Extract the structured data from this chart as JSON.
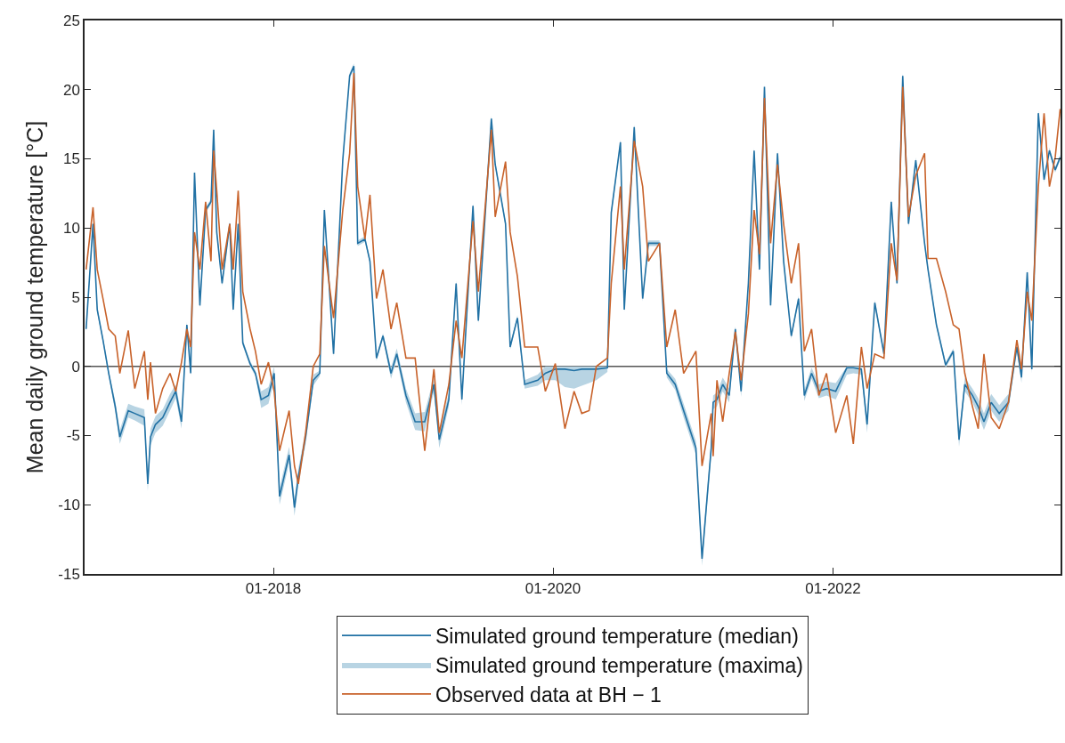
{
  "chart_data": {
    "type": "line",
    "ylabel": "Mean daily ground temperature [°C]",
    "x": [
      "2016-08-30",
      "2016-09-17",
      "2016-09-28",
      "2016-10-13",
      "2016-10-28",
      "2016-11-14",
      "2016-11-26",
      "2016-12-18",
      "2017-01-04",
      "2017-01-29",
      "2017-02-07",
      "2017-02-14",
      "2017-02-27",
      "2017-03-18",
      "2017-04-06",
      "2017-04-21",
      "2017-05-06",
      "2017-05-20",
      "2017-05-30",
      "2017-06-09",
      "2017-06-23",
      "2017-07-08",
      "2017-07-22",
      "2017-07-29",
      "2017-08-06",
      "2017-08-20",
      "2017-09-09",
      "2017-09-18",
      "2017-10-01",
      "2017-10-13",
      "2017-11-01",
      "2017-11-15",
      "2017-11-30",
      "2017-12-19",
      "2018-01-03",
      "2018-01-17",
      "2018-02-11",
      "2018-02-25",
      "2018-03-07",
      "2018-03-26",
      "2018-04-15",
      "2018-05-02",
      "2018-05-14",
      "2018-06-07",
      "2018-07-01",
      "2018-07-19",
      "2018-07-30",
      "2018-08-09",
      "2018-08-28",
      "2018-09-10",
      "2018-09-27",
      "2018-10-14",
      "2018-11-04",
      "2018-11-19",
      "2018-12-13",
      "2019-01-06",
      "2019-01-31",
      "2019-02-24",
      "2019-03-10",
      "2019-04-04",
      "2019-04-23",
      "2019-05-08",
      "2019-06-06",
      "2019-06-20",
      "2019-07-24",
      "2019-08-03",
      "2019-08-30",
      "2019-09-11",
      "2019-09-30",
      "2019-10-19",
      "2019-11-22",
      "2019-12-12",
      "2020-01-07",
      "2020-02-01",
      "2020-02-25",
      "2020-03-16",
      "2020-04-04",
      "2020-04-23",
      "2020-05-22",
      "2020-06-01",
      "2020-06-25",
      "2020-07-05",
      "2020-07-31",
      "2020-08-22",
      "2020-09-06",
      "2020-10-05",
      "2020-10-24",
      "2020-11-15",
      "2020-12-07",
      "2021-01-08",
      "2021-01-24",
      "2021-02-17",
      "2021-02-22",
      "2021-03-04",
      "2021-03-19",
      "2021-04-05",
      "2021-04-21",
      "2021-05-06",
      "2021-05-25",
      "2021-06-09",
      "2021-06-23",
      "2021-07-06",
      "2021-07-22",
      "2021-08-09",
      "2021-08-25",
      "2021-09-14",
      "2021-10-03",
      "2021-10-18",
      "2021-11-06",
      "2021-11-25",
      "2021-12-15",
      "2022-01-08",
      "2022-02-06",
      "2022-02-23",
      "2022-03-16",
      "2022-03-31",
      "2022-04-20",
      "2022-05-14",
      "2022-06-02",
      "2022-06-17",
      "2022-07-02",
      "2022-07-17",
      "2022-08-05",
      "2022-08-28",
      "2022-09-06",
      "2022-09-28",
      "2022-10-22",
      "2022-11-11",
      "2022-11-26",
      "2022-12-11",
      "2022-12-31",
      "2023-01-15",
      "2023-01-30",
      "2023-02-18",
      "2023-03-11",
      "2023-04-04",
      "2023-04-26",
      "2023-05-08",
      "2023-05-23",
      "2023-06-04",
      "2023-06-21",
      "2023-07-06",
      "2023-07-20",
      "2023-08-04",
      "2023-08-17"
    ],
    "series": [
      {
        "name": "Simulated ground temperature (median)",
        "color": "#2171a4",
        "values": [
          2.7,
          10.3,
          4.1,
          1.9,
          -0.5,
          -2.9,
          -5.1,
          -3.2,
          -3.4,
          -3.7,
          -8.5,
          -5.1,
          -4.2,
          -3.7,
          -2.6,
          -1.8,
          -4.0,
          3.0,
          -0.5,
          14.0,
          4.4,
          11.3,
          11.9,
          17.1,
          9.7,
          6.0,
          10.3,
          4.1,
          10.3,
          1.7,
          0.2,
          -0.5,
          -2.4,
          -2.1,
          -0.5,
          -9.4,
          -6.4,
          -10.2,
          -8.0,
          -5.1,
          -1.0,
          -0.5,
          11.3,
          0.9,
          14.9,
          21.0,
          21.7,
          8.9,
          9.2,
          7.6,
          0.6,
          2.2,
          -0.5,
          0.9,
          -2.1,
          -4.0,
          -4.0,
          -1.3,
          -5.3,
          -2.4,
          6.0,
          -2.4,
          11.6,
          3.3,
          17.9,
          14.6,
          10.3,
          1.4,
          3.5,
          -1.3,
          -1.0,
          -0.5,
          -0.2,
          -0.2,
          -0.3,
          -0.2,
          -0.2,
          -0.2,
          -0.1,
          11.1,
          16.2,
          4.1,
          17.3,
          4.9,
          8.9,
          8.9,
          -0.5,
          -1.3,
          -3.2,
          -5.9,
          -13.9,
          -5.9,
          -2.6,
          -2.4,
          -1.3,
          -2.1,
          2.7,
          -1.8,
          6.0,
          15.6,
          7.0,
          20.2,
          4.4,
          15.4,
          7.6,
          2.2,
          4.9,
          -2.1,
          -0.5,
          -1.8,
          -1.6,
          -1.8,
          -0.1,
          -0.1,
          -0.2,
          -4.2,
          4.6,
          0.9,
          11.9,
          6.0,
          21.0,
          10.3,
          14.9,
          8.9,
          7.0,
          3.0,
          0.1,
          1.1,
          -5.3,
          -1.3,
          -2.1,
          -2.9,
          -4.0,
          -2.6,
          -3.4,
          -2.6,
          1.4,
          -0.8,
          6.8,
          -0.2,
          18.3,
          13.5,
          15.6,
          14.2,
          15.1
        ],
        "lower": [
          2.5,
          10.1,
          3.9,
          1.7,
          -0.7,
          -3.3,
          -5.6,
          -3.7,
          -3.9,
          -4.3,
          -9.0,
          -5.7,
          -4.8,
          -4.3,
          -3.2,
          -2.3,
          -4.5,
          2.8,
          -0.7,
          13.8,
          4.2,
          11.1,
          11.7,
          16.9,
          9.5,
          5.8,
          10.1,
          3.9,
          10.1,
          1.5,
          0,
          -0.7,
          -3.0,
          -2.7,
          -1.0,
          -10.0,
          -7.0,
          -10.8,
          -8.6,
          -5.6,
          -1.4,
          -0.7,
          11.1,
          0.7,
          14.7,
          20.8,
          21.5,
          8.7,
          9.0,
          7.4,
          0.4,
          2.0,
          -0.9,
          0.5,
          -2.6,
          -4.6,
          -4.7,
          -1.8,
          -5.9,
          -2.9,
          5.8,
          -2.8,
          11.4,
          3.1,
          17.7,
          14.4,
          10.1,
          1.2,
          3.3,
          -1.6,
          -1.4,
          -1.0,
          -1.0,
          -1.5,
          -1.6,
          -1.4,
          -1.2,
          -1.0,
          -0.4,
          10.9,
          16.0,
          3.9,
          17.1,
          4.7,
          8.7,
          8.7,
          -0.8,
          -1.7,
          -3.7,
          -6.4,
          -14.4,
          -6.4,
          -3.1,
          -2.9,
          -1.8,
          -2.6,
          2.5,
          -2.2,
          5.8,
          15.4,
          6.8,
          20.0,
          4.2,
          15.2,
          7.4,
          2.0,
          4.7,
          -2.5,
          -0.9,
          -2.3,
          -2.1,
          -2.4,
          -0.6,
          -0.5,
          -0.6,
          -4.8,
          4.4,
          0.7,
          11.7,
          5.8,
          20.8,
          10.1,
          14.7,
          8.7,
          6.8,
          2.8,
          -0.1,
          0.9,
          -5.8,
          -1.8,
          -2.6,
          -3.5,
          -4.6,
          -3.2,
          -4.0,
          -3.2,
          1.2,
          -1.2,
          6.6,
          -0.5,
          18.1,
          13.3,
          15.4,
          14.0,
          14.9
        ],
        "upper": [
          2.9,
          10.5,
          4.3,
          2.1,
          -0.3,
          -2.5,
          -4.6,
          -2.7,
          -2.9,
          -3.1,
          -8.0,
          -4.5,
          -3.6,
          -3.1,
          -2.0,
          -1.3,
          -3.5,
          3.2,
          -0.3,
          14.2,
          4.6,
          11.5,
          12.1,
          17.3,
          9.9,
          6.2,
          10.5,
          4.3,
          10.5,
          1.9,
          0.4,
          -0.3,
          -1.8,
          -1.5,
          0,
          -8.8,
          -5.8,
          -9.6,
          -7.4,
          -4.6,
          -0.6,
          -0.3,
          11.5,
          1.1,
          15.1,
          21.2,
          21.9,
          9.1,
          9.4,
          7.8,
          0.8,
          2.4,
          -0.1,
          1.3,
          -1.6,
          -3.4,
          -3.3,
          -0.8,
          -4.7,
          -1.9,
          6.2,
          -2.0,
          11.8,
          3.5,
          18.1,
          14.8,
          10.5,
          1.6,
          3.7,
          -1.0,
          -0.6,
          0,
          0,
          0,
          0,
          0,
          0,
          0,
          0,
          11.3,
          16.4,
          4.3,
          17.5,
          5.1,
          9.1,
          9.1,
          -0.2,
          -0.9,
          -2.7,
          -5.4,
          -13.4,
          -5.4,
          -2.1,
          -1.9,
          -0.8,
          -1.6,
          2.9,
          -1.4,
          6.2,
          15.8,
          7.2,
          20.4,
          4.6,
          15.6,
          7.8,
          2.4,
          5.1,
          -1.7,
          -0.1,
          -1.3,
          -1.1,
          -1.2,
          0,
          0,
          0,
          -3.6,
          4.8,
          1.1,
          12.1,
          6.2,
          21.2,
          10.5,
          15.1,
          9.1,
          7.2,
          3.2,
          0.3,
          1.3,
          -4.8,
          -0.8,
          -1.6,
          -2.3,
          -3.4,
          -2.0,
          -2.8,
          -2.0,
          1.6,
          -0.4,
          7.0,
          0.1,
          18.5,
          13.7,
          15.8,
          14.4,
          15.3
        ]
      },
      {
        "name": "Simulated ground temperature (maxima)",
        "type": "area",
        "color": "#b8d4e3",
        "values": [
          null,
          null,
          null,
          null,
          null,
          null,
          null,
          null,
          null,
          null,
          null,
          null,
          null,
          null,
          null,
          null,
          null,
          null,
          null,
          null,
          null,
          null,
          null,
          null,
          null,
          null,
          null,
          null,
          null,
          null,
          null,
          null,
          null,
          null,
          null,
          null,
          null,
          null,
          null,
          null,
          null,
          null,
          null,
          null,
          null,
          null,
          null,
          null,
          null,
          null,
          null,
          null,
          null,
          null,
          null,
          null,
          null,
          null,
          null,
          null,
          null,
          null,
          null,
          null,
          null,
          null,
          null,
          null,
          null,
          null,
          null,
          null,
          null,
          null,
          null,
          null,
          null,
          null,
          null,
          null,
          null,
          null,
          null,
          null,
          null,
          null,
          null,
          null,
          null,
          null,
          null,
          null,
          null,
          null,
          null,
          null,
          null,
          null,
          null,
          null,
          null,
          null,
          null,
          null,
          null,
          null,
          null,
          null,
          null,
          null,
          null,
          null,
          null,
          null,
          null,
          null,
          null,
          null,
          null,
          null,
          null,
          null,
          null,
          null,
          null,
          null,
          null,
          null,
          null,
          null,
          null,
          null,
          null,
          null,
          null,
          null,
          null,
          null,
          null,
          null,
          null,
          null,
          null,
          null,
          null
        ]
      },
      {
        "name": "Observed data at BH − 1",
        "color": "#c8622a",
        "values": [
          7.0,
          11.5,
          7.0,
          4.9,
          2.7,
          2.2,
          -0.5,
          2.6,
          -1.6,
          1.1,
          -2.4,
          0.3,
          -3.4,
          -1.6,
          -0.5,
          -1.8,
          0.3,
          2.7,
          1.4,
          9.7,
          7.0,
          11.9,
          7.6,
          15.6,
          12.7,
          7.0,
          10.3,
          7.0,
          12.7,
          5.4,
          2.7,
          1.1,
          -1.3,
          0.3,
          -1.8,
          -6.1,
          -3.2,
          -7.2,
          -8.5,
          -4.8,
          0,
          0.9,
          8.7,
          3.5,
          11.3,
          15.4,
          21.2,
          13.0,
          9.2,
          12.4,
          4.9,
          7.0,
          2.7,
          4.6,
          0.6,
          0.6,
          -6.1,
          -0.2,
          -4.8,
          -1.3,
          3.3,
          0.6,
          10.5,
          5.4,
          17.1,
          10.8,
          14.8,
          9.7,
          6.5,
          1.4,
          1.4,
          -1.8,
          0.2,
          -4.5,
          -1.8,
          -3.4,
          -3.2,
          0,
          0.6,
          6.0,
          13.0,
          7.0,
          16.3,
          13,
          7.6,
          8.9,
          1.4,
          4.1,
          -0.5,
          1.1,
          -7.2,
          -3.4,
          -6.5,
          -1.0,
          -4.0,
          -0.5,
          2.5,
          -1.0,
          3.8,
          11.3,
          8.1,
          19.4,
          8.9,
          14.6,
          10.3,
          6.0,
          8.9,
          1.1,
          2.7,
          -2.1,
          -0.5,
          -4.8,
          -2.1,
          -5.6,
          1.4,
          -1.6,
          0.9,
          0.6,
          8.9,
          6.2,
          20.2,
          10.8,
          13.8,
          15.4,
          7.8,
          7.8,
          5.4,
          3.0,
          2.7,
          -0.5,
          -2.9,
          -4.5,
          0.9,
          -3.7,
          -4.5,
          -2.6,
          1.9,
          -0.2,
          5.4,
          3.3,
          13.0,
          18.3,
          13,
          15.1,
          18.6
        ]
      }
    ],
    "xlim": [
      "2016-08-26",
      "2023-08-18"
    ],
    "xticks": [
      {
        "value": "2018-01-01",
        "label": "01-2018"
      },
      {
        "value": "2020-01-01",
        "label": "01-2020"
      },
      {
        "value": "2022-01-01",
        "label": "01-2022"
      }
    ],
    "ylim": [
      -15,
      25
    ],
    "yticks": [
      -15,
      -10,
      -5,
      0,
      5,
      10,
      15,
      20,
      25
    ],
    "ref_lines": [
      {
        "axis": "y",
        "value": 0,
        "color": "#555555"
      }
    ],
    "legend": "bottom",
    "grid": false,
    "marker": "none",
    "line_style": "solid"
  }
}
